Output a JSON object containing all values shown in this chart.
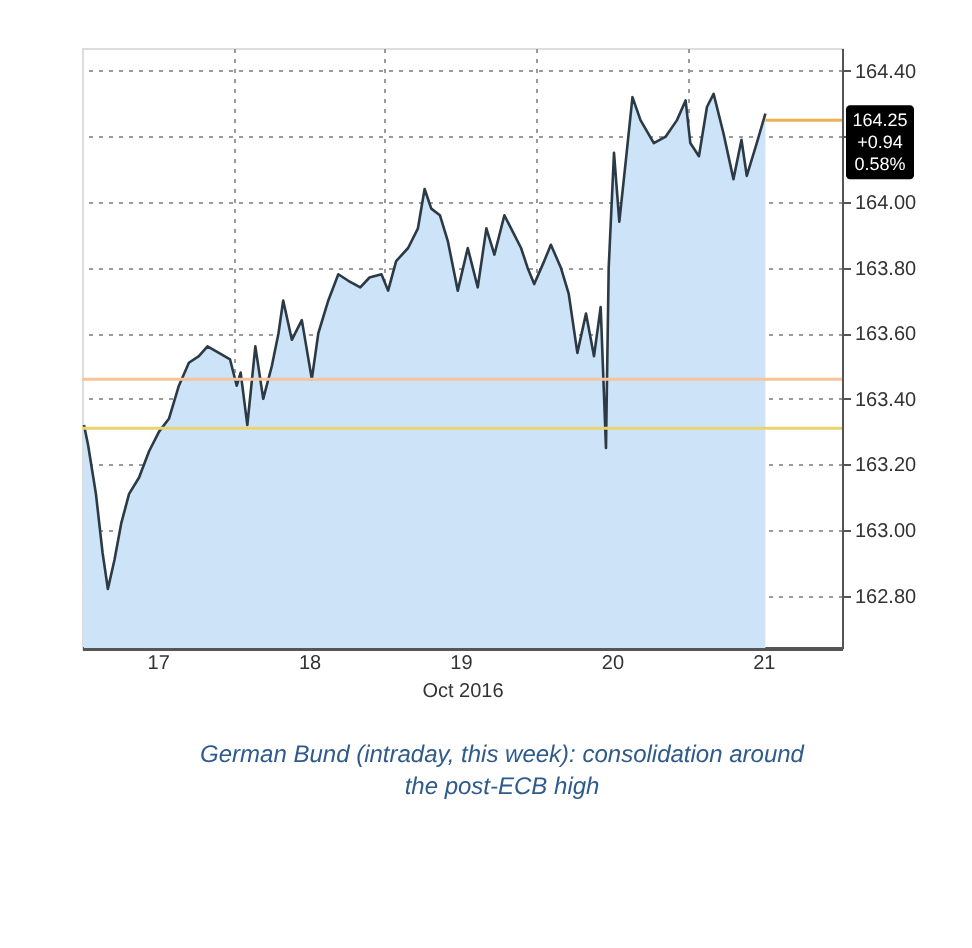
{
  "chart_data": {
    "type": "area",
    "xlabel": "Oct 2016",
    "x": [
      16.513,
      16.54,
      16.592,
      16.636,
      16.671,
      16.715,
      16.759,
      16.811,
      16.877,
      16.943,
      17.009,
      17.075,
      17.14,
      17.206,
      17.272,
      17.329,
      17.404,
      17.478,
      17.522,
      17.548,
      17.592,
      17.645,
      17.697,
      17.754,
      17.798,
      17.829,
      17.886,
      17.952,
      18.018,
      18.061,
      18.127,
      18.193,
      18.259,
      18.338,
      18.399,
      18.478,
      18.522,
      18.575,
      18.654,
      18.719,
      18.763,
      18.807,
      18.864,
      18.917,
      18.982,
      19.048,
      19.114,
      19.171,
      19.224,
      19.29,
      19.356,
      19.4,
      19.443,
      19.487,
      19.553,
      19.597,
      19.663,
      19.715,
      19.772,
      19.829,
      19.882,
      19.926,
      19.961,
      19.979,
      20.014,
      20.049,
      20.093,
      20.136,
      20.189,
      20.277,
      20.356,
      20.43,
      20.487,
      20.518,
      20.575,
      20.628,
      20.672,
      20.737,
      20.803,
      20.856,
      20.891,
      20.957,
      21.014
    ],
    "series": [
      {
        "color": "#cde4f8",
        "values": [
          163.32,
          163.26,
          163.11,
          162.93,
          162.82,
          162.91,
          163.02,
          163.11,
          163.16,
          163.24,
          163.3,
          163.34,
          163.44,
          163.51,
          163.53,
          163.56,
          163.54,
          163.52,
          163.44,
          163.48,
          163.32,
          163.56,
          163.4,
          163.5,
          163.6,
          163.7,
          163.58,
          163.64,
          163.46,
          163.6,
          163.7,
          163.78,
          163.76,
          163.74,
          163.77,
          163.78,
          163.73,
          163.82,
          163.86,
          163.92,
          164.04,
          163.98,
          163.96,
          163.88,
          163.73,
          163.86,
          163.74,
          163.92,
          163.84,
          163.96,
          163.9,
          163.86,
          163.8,
          163.75,
          163.82,
          163.87,
          163.8,
          163.72,
          163.54,
          163.66,
          163.53,
          163.68,
          163.25,
          163.8,
          164.15,
          163.94,
          164.13,
          164.32,
          164.25,
          164.18,
          164.2,
          164.25,
          164.31,
          164.18,
          164.14,
          164.29,
          164.33,
          164.21,
          164.07,
          164.19,
          164.08,
          164.18,
          164.27
        ]
      }
    ],
    "xlim": [
      16.5,
      21.52
    ],
    "xticks": [
      {
        "value": 17,
        "label": "17"
      },
      {
        "value": 17.5,
        "label": null
      },
      {
        "value": 18,
        "label": "18"
      },
      {
        "value": 18.5,
        "label": null
      },
      {
        "value": 19,
        "label": "19"
      },
      {
        "value": 19.5,
        "label": null
      },
      {
        "value": 20,
        "label": "20"
      },
      {
        "value": 20.5,
        "label": null
      },
      {
        "value": 21,
        "label": "21"
      }
    ],
    "ylim": [
      162.64,
      164.47
    ],
    "yticks": [
      {
        "value": 162.8,
        "label": "162.80"
      },
      {
        "value": 163.0,
        "label": "163.00"
      },
      {
        "value": 163.2,
        "label": "163.20"
      },
      {
        "value": 163.4,
        "label": "163.40"
      },
      {
        "value": 163.6,
        "label": "163.60"
      },
      {
        "value": 163.8,
        "label": "163.80"
      },
      {
        "value": 164.0,
        "label": "164.00"
      },
      {
        "value": 164.2,
        "label": null
      },
      {
        "value": 164.4,
        "label": "164.40"
      }
    ],
    "grid": true,
    "ref_lines": [
      {
        "axis": "y",
        "value": 163.46,
        "color": "#f6c39a"
      },
      {
        "axis": "y",
        "value": 163.31,
        "color": "#e9d470"
      }
    ],
    "annotations": [
      {
        "text": "164.25",
        "x": 21.014,
        "y": 164.25
      },
      "+0.94",
      "0.58%",
      "German Bund (intraday, this week): consolidation around the post-ECB high"
    ]
  }
}
